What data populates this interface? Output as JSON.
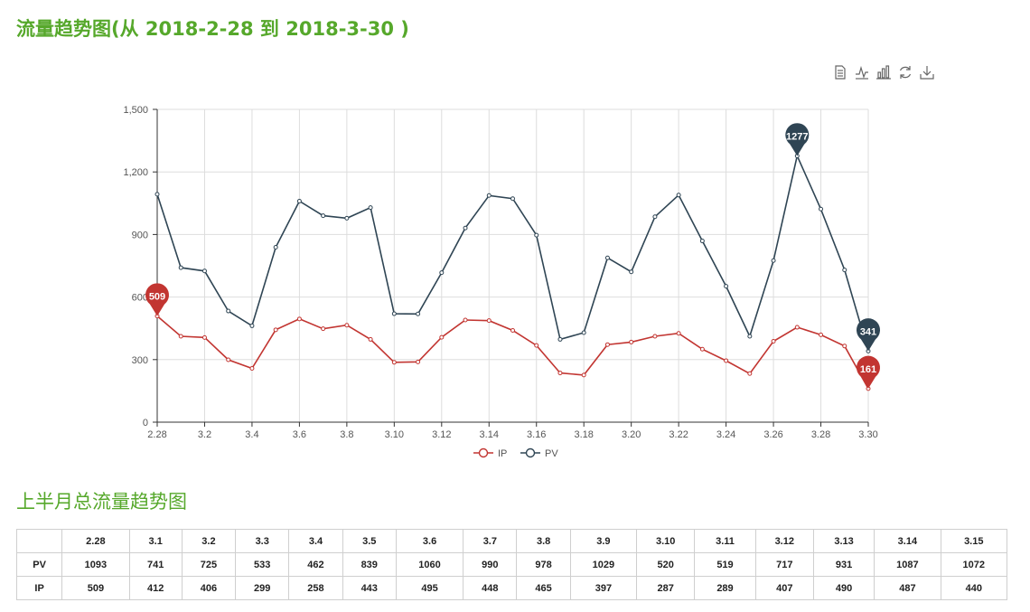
{
  "title": "流量趋势图(从 2018-2-28 到 2018-3-30 )",
  "subtitle": "上半月总流量趋势图",
  "toolbox": [
    {
      "icon": "data-view-icon"
    },
    {
      "icon": "line-chart-icon"
    },
    {
      "icon": "bar-chart-icon"
    },
    {
      "icon": "restore-icon"
    },
    {
      "icon": "download-icon"
    }
  ],
  "colors": {
    "ip": "#c23531",
    "pv": "#2f4554",
    "title": "#56a82b"
  },
  "chart_data": {
    "type": "line",
    "categories": [
      "2.28",
      "3.1",
      "3.2",
      "3.3",
      "3.4",
      "3.5",
      "3.6",
      "3.7",
      "3.8",
      "3.9",
      "3.10",
      "3.11",
      "3.12",
      "3.13",
      "3.14",
      "3.15",
      "3.16",
      "3.17",
      "3.18",
      "3.19",
      "3.20",
      "3.21",
      "3.22",
      "3.23",
      "3.24",
      "3.25",
      "3.26",
      "3.27",
      "3.28",
      "3.29",
      "3.30"
    ],
    "xtick_labels": [
      "2.28",
      "3.2",
      "3.4",
      "3.6",
      "3.8",
      "3.10",
      "3.12",
      "3.14",
      "3.16",
      "3.18",
      "3.20",
      "3.22",
      "3.24",
      "3.26",
      "3.28",
      "3.30"
    ],
    "yticks": [
      0,
      300,
      600,
      900,
      1200,
      1500
    ],
    "ytick_labels": [
      "0",
      "300",
      "600",
      "900",
      "1,200",
      "1,500"
    ],
    "ylim": [
      0,
      1500
    ],
    "grid": true,
    "legend_position": "bottom-center",
    "series": [
      {
        "name": "IP",
        "color": "#c23531",
        "values": [
          509,
          412,
          406,
          299,
          258,
          443,
          495,
          448,
          465,
          397,
          287,
          289,
          407,
          490,
          487,
          440,
          368,
          236,
          226,
          372,
          384,
          412,
          426,
          350,
          295,
          233,
          388,
          455,
          419,
          365,
          161
        ]
      },
      {
        "name": "PV",
        "color": "#2f4554",
        "values": [
          1093,
          741,
          725,
          533,
          462,
          839,
          1060,
          990,
          978,
          1029,
          520,
          519,
          717,
          931,
          1087,
          1072,
          897,
          397,
          429,
          788,
          721,
          985,
          1089,
          869,
          652,
          412,
          775,
          1277,
          1022,
          730,
          341
        ]
      }
    ],
    "markers": [
      {
        "series": "IP",
        "label": "509",
        "index": 0
      },
      {
        "series": "IP",
        "label": "161",
        "index": 30
      },
      {
        "series": "PV",
        "label": "1277",
        "index": 27
      },
      {
        "series": "PV",
        "label": "341",
        "index": 30
      }
    ]
  },
  "table": {
    "headers": [
      "",
      "2.28",
      "3.1",
      "3.2",
      "3.3",
      "3.4",
      "3.5",
      "3.6",
      "3.7",
      "3.8",
      "3.9",
      "3.10",
      "3.11",
      "3.12",
      "3.13",
      "3.14",
      "3.15"
    ],
    "rows": [
      [
        "PV",
        "1093",
        "741",
        "725",
        "533",
        "462",
        "839",
        "1060",
        "990",
        "978",
        "1029",
        "520",
        "519",
        "717",
        "931",
        "1087",
        "1072"
      ],
      [
        "IP",
        "509",
        "412",
        "406",
        "299",
        "258",
        "443",
        "495",
        "448",
        "465",
        "397",
        "287",
        "289",
        "407",
        "490",
        "487",
        "440"
      ]
    ]
  }
}
